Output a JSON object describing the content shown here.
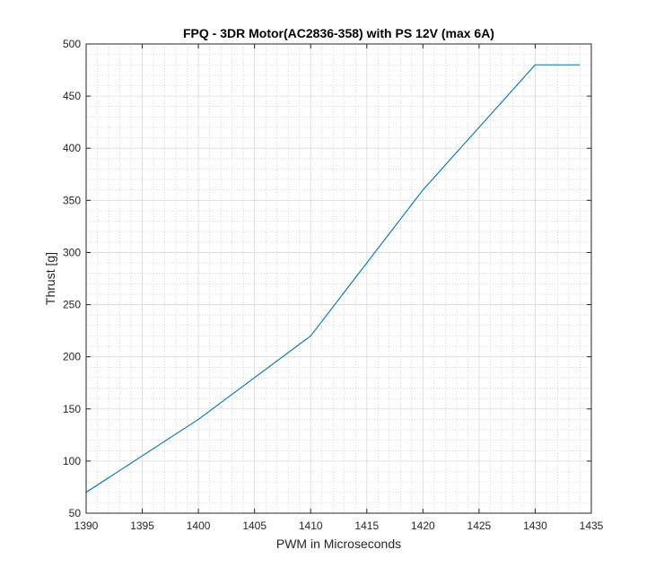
{
  "chart_data": {
    "type": "line",
    "title": "FPQ - 3DR Motor(AC2836-358) with PS 12V (max 6A)",
    "xlabel": "PWM in Microseconds",
    "ylabel": "Thrust [g]",
    "xlim": [
      1390,
      1435
    ],
    "ylim": [
      50,
      500
    ],
    "xticks": [
      1390,
      1395,
      1400,
      1405,
      1410,
      1415,
      1420,
      1425,
      1430,
      1435
    ],
    "yticks": [
      50,
      100,
      150,
      200,
      250,
      300,
      350,
      400,
      450,
      500
    ],
    "xminor_step": 1,
    "yminor_step": 10,
    "grid": true,
    "minor_grid": true,
    "line_color": "#0072bd",
    "series": [
      {
        "name": "Thrust",
        "x": [
          1390,
          1400,
          1410,
          1420,
          1430,
          1434
        ],
        "y": [
          70,
          140,
          220,
          360,
          480,
          480
        ]
      }
    ]
  }
}
